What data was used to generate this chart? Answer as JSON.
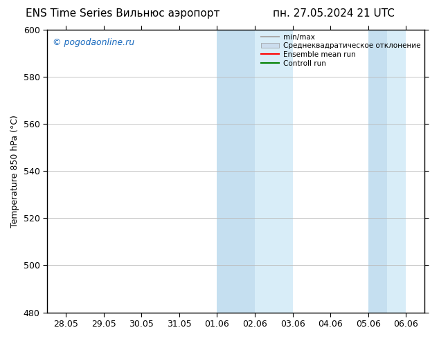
{
  "title_left": "ENS Time Series Вильнюс аэропорт",
  "title_right": "пн. 27.05.2024 21 UTC",
  "ylabel": "Temperature 850 hPa (°C)",
  "watermark": "© pogodaonline.ru",
  "ylim": [
    480,
    600
  ],
  "yticks": [
    480,
    500,
    520,
    540,
    560,
    580,
    600
  ],
  "xtick_labels": [
    "28.05",
    "29.05",
    "30.05",
    "31.05",
    "01.06",
    "02.06",
    "03.06",
    "04.06",
    "05.06",
    "06.06"
  ],
  "shaded_band1a": [
    4.0,
    5.0
  ],
  "shaded_band1b": [
    5.0,
    6.0
  ],
  "shaded_band2a": [
    8.0,
    8.5
  ],
  "shaded_band2b": [
    8.5,
    9.0
  ],
  "shaded_color_dark": "#c5dff0",
  "shaded_color_light": "#d8edf8",
  "background_color": "#ffffff",
  "grid_color": "#bbbbbb",
  "legend_items": [
    {
      "label": "min/max",
      "color": "#aaaaaa",
      "linestyle": "-",
      "type": "line"
    },
    {
      "label": "Среднеквадратическое отклонение",
      "color": "#ccddee",
      "linestyle": "-",
      "type": "patch"
    },
    {
      "label": "Ensemble mean run",
      "color": "#ff0000",
      "linestyle": "-",
      "type": "line"
    },
    {
      "label": "Controll run",
      "color": "#008000",
      "linestyle": "-",
      "type": "line"
    }
  ],
  "watermark_color": "#1a6bbf",
  "title_fontsize": 11,
  "axis_fontsize": 9,
  "tick_fontsize": 9
}
